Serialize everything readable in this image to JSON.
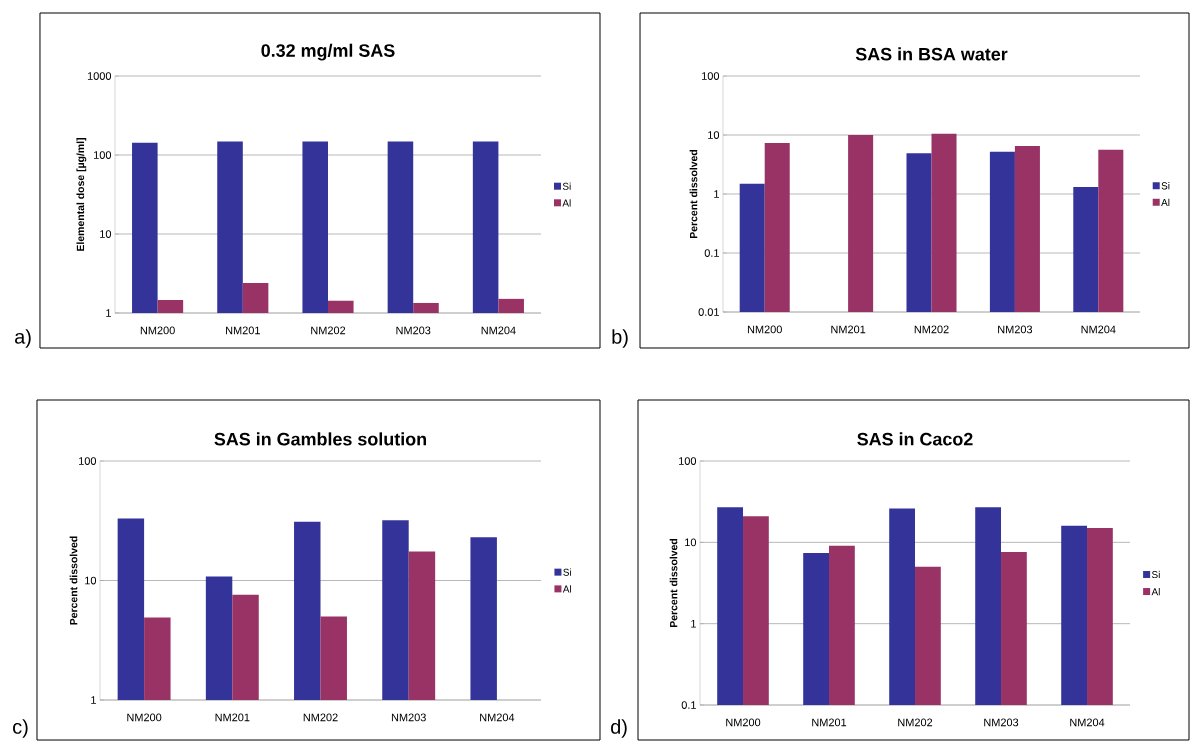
{
  "chart_data": [
    {
      "type": "bar",
      "title": "0.32 mg/ml SAS",
      "ylabel": "Elemental dose [µg/ml]",
      "annotations": [
        "a)"
      ],
      "categories": [
        "NM200",
        "NM201",
        "NM202",
        "NM203",
        "NM204"
      ],
      "log": true,
      "ylim": [
        1,
        1000
      ],
      "yticks": [
        1,
        10,
        100,
        1000
      ],
      "grid": "y",
      "legend": "right",
      "series": [
        {
          "name": "Si",
          "color": "#333399",
          "values": [
            143,
            148,
            148,
            148,
            148
          ]
        },
        {
          "name": "Al",
          "color": "#993366",
          "values": [
            1.46,
            2.4,
            1.43,
            1.34,
            1.51
          ]
        }
      ]
    },
    {
      "type": "bar",
      "title": "SAS in BSA water",
      "ylabel": "Percent dissolved",
      "annotations": [
        "b)"
      ],
      "categories": [
        "NM200",
        "NM201",
        "NM202",
        "NM203",
        "NM204"
      ],
      "log": true,
      "ylim": [
        0.01,
        100
      ],
      "yticks": [
        0.01,
        0.1,
        1,
        10,
        100
      ],
      "grid": "y",
      "legend": "right",
      "series": [
        {
          "name": "Si",
          "color": "#333399",
          "values": [
            1.49,
            null,
            4.9,
            5.2,
            1.32
          ]
        },
        {
          "name": "Al",
          "color": "#993366",
          "values": [
            7.3,
            10,
            10.5,
            6.5,
            5.6
          ]
        }
      ]
    },
    {
      "type": "bar",
      "title": "SAS in Gambles solution",
      "ylabel": "Percent dissolved",
      "annotations": [
        "c)"
      ],
      "categories": [
        "NM200",
        "NM201",
        "NM202",
        "NM203",
        "NM204"
      ],
      "log": true,
      "ylim": [
        1,
        100
      ],
      "yticks": [
        1,
        10,
        100
      ],
      "grid": "y",
      "legend": "right",
      "series": [
        {
          "name": "Si",
          "color": "#333399",
          "values": [
            33,
            10.8,
            31,
            32,
            23
          ]
        },
        {
          "name": "Al",
          "color": "#993366",
          "values": [
            4.9,
            7.6,
            5.0,
            17.5,
            null
          ]
        }
      ]
    },
    {
      "type": "bar",
      "title": "SAS in Caco2",
      "ylabel": "Percent dissolved",
      "annotations": [
        "d)"
      ],
      "categories": [
        "NM200",
        "NM201",
        "NM202",
        "NM203",
        "NM204"
      ],
      "log": true,
      "ylim": [
        0.1,
        100
      ],
      "yticks": [
        0.1,
        1,
        10,
        100
      ],
      "grid": "y",
      "legend": "right",
      "series": [
        {
          "name": "Si",
          "color": "#333399",
          "values": [
            27,
            7.4,
            26,
            27,
            16
          ]
        },
        {
          "name": "Al",
          "color": "#993366",
          "values": [
            21,
            9.1,
            5.0,
            7.6,
            15
          ]
        }
      ]
    }
  ]
}
